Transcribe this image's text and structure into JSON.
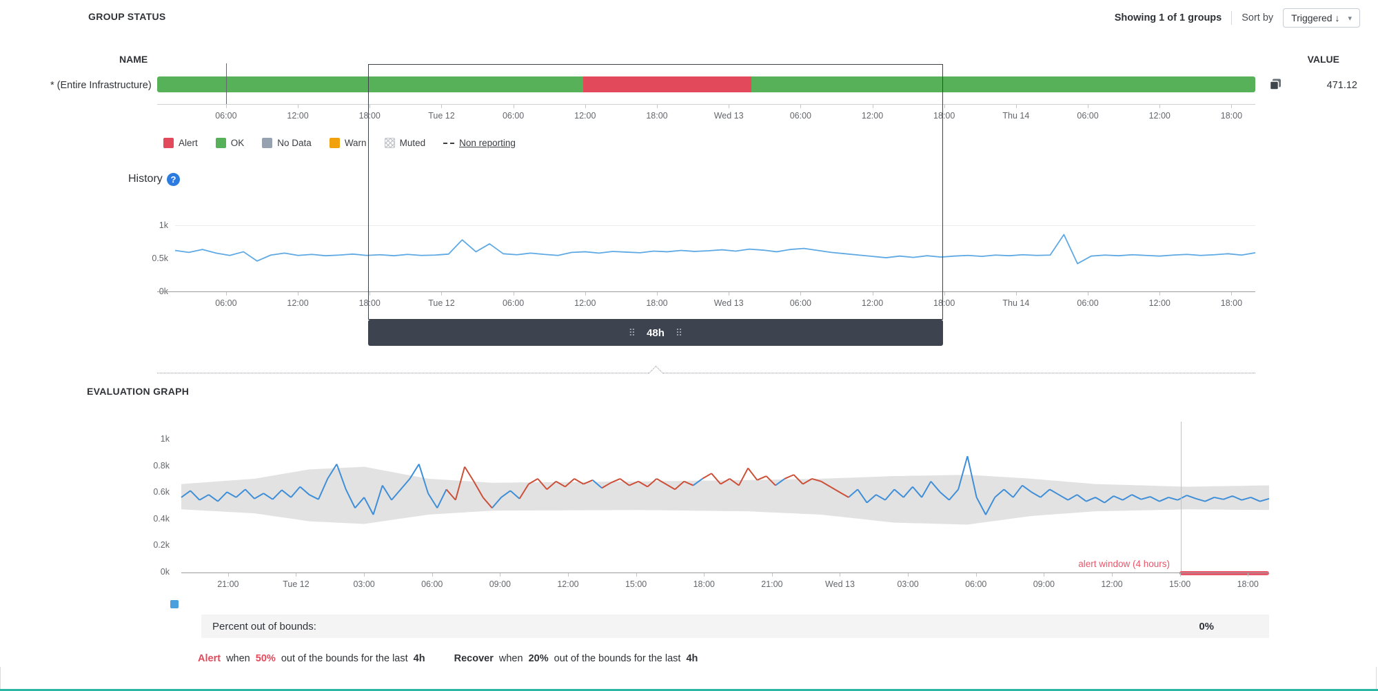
{
  "colors": {
    "ok_green": "#57b158",
    "alert_red": "#e2495b",
    "no_data_gray": "#97a2b1",
    "warn_orange": "#f1a10d",
    "history_line_blue": "#5ea9e4",
    "eval_line_blue": "#3e8ed8",
    "out_of_bounds_red": "#cc4f38",
    "band_gray": "#e2e2e2",
    "alert_window_red": "#e8566a",
    "accent_teal": "#2bb5a3",
    "help_blue": "#2c7be0",
    "marker_blue": "#4a9fdd"
  },
  "header": {
    "title": "GROUP STATUS",
    "showing": "Showing 1 of 1 groups",
    "sort_by_label": "Sort by",
    "sort_value": "Triggered ↓",
    "caret": "▾"
  },
  "group_status": {
    "name_header": "NAME",
    "value_header": "VALUE",
    "row_name": "* (Entire Infrastructure)",
    "row_value": "471.12"
  },
  "status_legend": [
    {
      "label": "Alert",
      "type": "color",
      "color_key": "alert_red"
    },
    {
      "label": "OK",
      "type": "color",
      "color_key": "ok_green"
    },
    {
      "label": "No Data",
      "type": "color",
      "color_key": "no_data_gray"
    },
    {
      "label": "Warn",
      "type": "color",
      "color_key": "warn_orange"
    },
    {
      "label": "Muted",
      "type": "crosshatch"
    },
    {
      "label": "Non reporting",
      "type": "dash"
    }
  ],
  "history": {
    "title": "History",
    "help_glyph": "?",
    "brush_label": "48h",
    "drag_dots": "⠿"
  },
  "evaluation": {
    "title": "EVALUATION GRAPH",
    "alert_window_label": "alert window (4 hours)",
    "percent_label": "Percent out of bounds:",
    "percent_value": "0%",
    "threshold": {
      "alert_word": "Alert",
      "when1": "when",
      "alert_pct": "50%",
      "tail1": "out of the bounds for the last",
      "dur1": "4h",
      "recover_word": "Recover",
      "when2": "when",
      "recover_pct": "20%",
      "tail2": "out of the bounds for the last",
      "dur2": "4h"
    }
  },
  "chart_data": [
    {
      "type": "status-timeline",
      "x_ticks": [
        "06:00",
        "12:00",
        "18:00",
        "Tue 12",
        "06:00",
        "12:00",
        "18:00",
        "Wed 13",
        "06:00",
        "12:00",
        "18:00",
        "Thu 14",
        "06:00",
        "12:00",
        "18:00"
      ],
      "segments": [
        {
          "status": "ok",
          "from": 0,
          "to": 38.8
        },
        {
          "status": "alert",
          "from": 38.8,
          "to": 54.1
        },
        {
          "status": "ok",
          "from": 54.1,
          "to": 100
        }
      ]
    },
    {
      "type": "line",
      "y_ticks": [
        "1k",
        "0.5k",
        "0k"
      ],
      "ylim": [
        0,
        1000
      ],
      "x_ticks": [
        "06:00",
        "12:00",
        "18:00",
        "Tue 12",
        "06:00",
        "12:00",
        "18:00",
        "Wed 13",
        "06:00",
        "12:00",
        "18:00",
        "Thu 14",
        "06:00",
        "12:00",
        "18:00"
      ],
      "brush_selection": "48h",
      "values": [
        630,
        600,
        645,
        590,
        555,
        610,
        470,
        560,
        590,
        555,
        570,
        550,
        560,
        575,
        555,
        565,
        550,
        570,
        555,
        560,
        575,
        790,
        610,
        730,
        580,
        565,
        590,
        570,
        555,
        600,
        610,
        590,
        615,
        605,
        595,
        620,
        610,
        630,
        615,
        625,
        640,
        620,
        650,
        635,
        610,
        645,
        660,
        630,
        600,
        580,
        560,
        540,
        520,
        545,
        525,
        550,
        530,
        545,
        555,
        540,
        560,
        550,
        565,
        555,
        560,
        870,
        430,
        545,
        560,
        550,
        565,
        555,
        545,
        560,
        570,
        555,
        565,
        580,
        560,
        595
      ]
    },
    {
      "type": "line-with-band",
      "y_ticks": [
        "1k",
        "0.8k",
        "0.6k",
        "0.4k",
        "0.2k",
        "0k"
      ],
      "ylim": [
        0,
        1000
      ],
      "x_ticks": [
        "21:00",
        "Tue 12",
        "03:00",
        "06:00",
        "09:00",
        "12:00",
        "15:00",
        "18:00",
        "21:00",
        "Wed 13",
        "03:00",
        "06:00",
        "09:00",
        "12:00",
        "15:00",
        "18:00"
      ],
      "alert_window_label": "alert window (4 hours)",
      "percent_out_of_bounds": "0%",
      "values": [
        560,
        610,
        540,
        580,
        530,
        600,
        560,
        620,
        550,
        590,
        545,
        615,
        560,
        640,
        580,
        545,
        700,
        810,
        620,
        480,
        560,
        430,
        650,
        540,
        620,
        700,
        810,
        590,
        480,
        620,
        540,
        790,
        680,
        560,
        480,
        560,
        610,
        550,
        660,
        700,
        620,
        680,
        640,
        700,
        660,
        690,
        630,
        670,
        700,
        650,
        680,
        640,
        700,
        660,
        620,
        680,
        650,
        700,
        740,
        660,
        700,
        650,
        780,
        690,
        720,
        650,
        700,
        730,
        660,
        700,
        680,
        640,
        600,
        560,
        620,
        520,
        580,
        540,
        620,
        560,
        640,
        560,
        680,
        600,
        540,
        620,
        870,
        560,
        430,
        560,
        620,
        560,
        650,
        600,
        560,
        620,
        580,
        540,
        580,
        530,
        560,
        520,
        570,
        540,
        580,
        545,
        565,
        530,
        560,
        540,
        575,
        550,
        530,
        560,
        545,
        570,
        540,
        560,
        530,
        550
      ],
      "band_points": [
        {
          "i": 0,
          "u": 660,
          "l": 470
        },
        {
          "i": 8,
          "u": 700,
          "l": 440
        },
        {
          "i": 14,
          "u": 770,
          "l": 380
        },
        {
          "i": 20,
          "u": 790,
          "l": 360
        },
        {
          "i": 27,
          "u": 700,
          "l": 430
        },
        {
          "i": 34,
          "u": 670,
          "l": 460
        },
        {
          "i": 50,
          "u": 680,
          "l": 465
        },
        {
          "i": 62,
          "u": 690,
          "l": 455
        },
        {
          "i": 70,
          "u": 700,
          "l": 430
        },
        {
          "i": 78,
          "u": 720,
          "l": 370
        },
        {
          "i": 86,
          "u": 730,
          "l": 355
        },
        {
          "i": 93,
          "u": 700,
          "l": 420
        },
        {
          "i": 100,
          "u": 660,
          "l": 455
        },
        {
          "i": 110,
          "u": 640,
          "l": 470
        },
        {
          "i": 119,
          "u": 650,
          "l": 465
        }
      ],
      "out_ranges": [
        [
          30,
          33
        ],
        [
          38,
          44
        ],
        [
          47,
          55
        ],
        [
          58,
          64
        ],
        [
          67,
          72
        ]
      ]
    }
  ]
}
